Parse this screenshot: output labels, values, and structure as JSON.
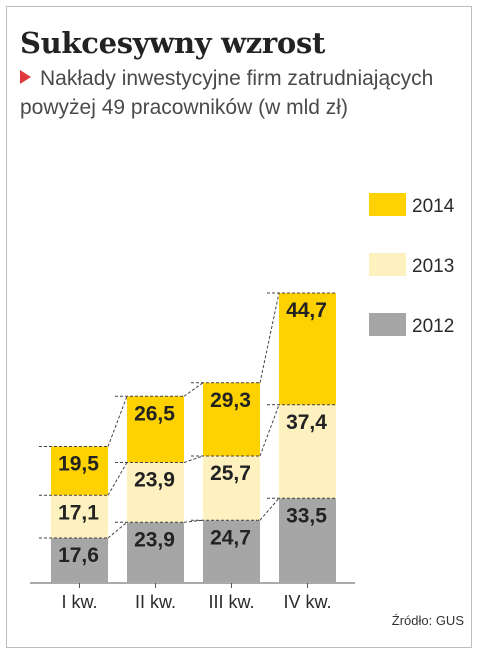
{
  "title": "Sukcesywny wzrost",
  "subtitle": "Nakłady inwestycyjne firm zatrudniających powyżej 49 pracowników (w mld zł)",
  "source": "Źródło: GUS",
  "chart_data": {
    "type": "bar",
    "stacked": true,
    "categories": [
      "I kw.",
      "II kw.",
      "III kw.",
      "IV kw."
    ],
    "series": [
      {
        "name": "2012",
        "values": [
          17.6,
          23.9,
          24.7,
          33.5
        ],
        "color": "#a6a6a6",
        "value_labels": [
          "17,6",
          "23,9",
          "24,7",
          "33,5"
        ]
      },
      {
        "name": "2013",
        "values": [
          17.1,
          23.9,
          25.7,
          37.4
        ],
        "color": "#fdf1c0",
        "value_labels": [
          "17,1",
          "23,9",
          "25,7",
          "37,4"
        ]
      },
      {
        "name": "2014",
        "values": [
          19.5,
          26.5,
          29.3,
          44.7
        ],
        "color": "#fed200",
        "value_labels": [
          "19,5",
          "26,5",
          "29,3",
          "44,7"
        ]
      }
    ],
    "legend_position": "right",
    "grid": false,
    "connector_lines": "dashed"
  }
}
